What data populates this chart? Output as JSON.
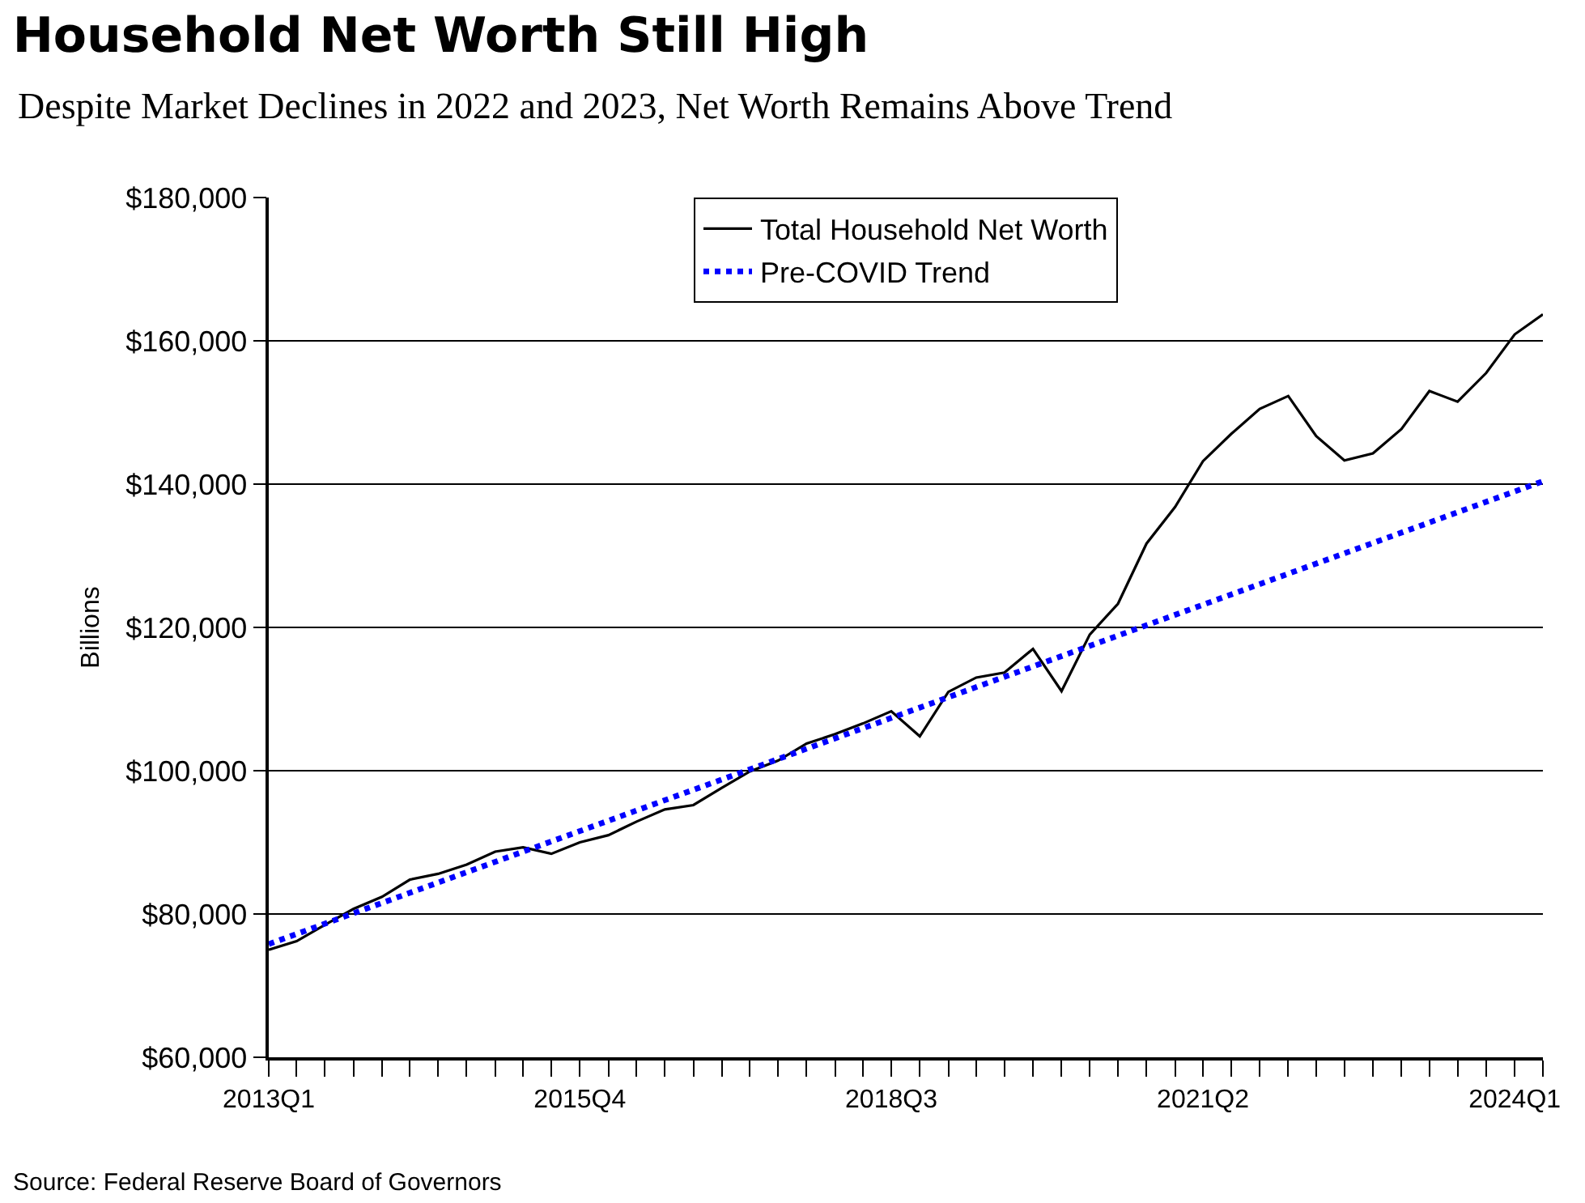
{
  "chart_data": {
    "type": "line",
    "title": "Household Net Worth Still High",
    "subtitle": "Despite Market Declines in 2022 and 2023, Net Worth Remains Above Trend",
    "ylabel": "Billions",
    "x": [
      "2013-01",
      "2013-04",
      "2013-07",
      "2013-10",
      "2014-01",
      "2014-04",
      "2014-07",
      "2014-10",
      "2015-01",
      "2015-04",
      "2015-07",
      "2015-10",
      "2016-01",
      "2016-04",
      "2016-07",
      "2016-10",
      "2017-01",
      "2017-04",
      "2017-07",
      "2017-10",
      "2018-01",
      "2018-04",
      "2018-07",
      "2018-10",
      "2019-01",
      "2019-04",
      "2019-07",
      "2019-10",
      "2020-01",
      "2020-04",
      "2020-07",
      "2020-10",
      "2021-01",
      "2021-04",
      "2021-07",
      "2021-10",
      "2022-01",
      "2022-04",
      "2022-07",
      "2022-10",
      "2023-01",
      "2023-04",
      "2023-07",
      "2023-10",
      "2024-01",
      "2024-04"
    ],
    "series": [
      {
        "name": "Total Household Net Worth",
        "color": "#000000",
        "line_style": "solid",
        "values": [
          75000,
          76200,
          78500,
          80700,
          82400,
          84800,
          85600,
          86900,
          88700,
          89300,
          88400,
          90000,
          91000,
          92900,
          94600,
          95200,
          97600,
          99900,
          101400,
          103800,
          105100,
          106600,
          108300,
          104800,
          111000,
          113000,
          113700,
          117000,
          111100,
          119000,
          123300,
          131700,
          136800,
          143200,
          147000,
          150500,
          152300,
          146700,
          143300,
          144300,
          147700,
          153000,
          151500,
          155500,
          160900,
          163700
        ]
      },
      {
        "name": "Pre-COVID Trend",
        "color": "#0000ff",
        "line_style": "dotted",
        "x": [
          "2013-01",
          "2024-04"
        ],
        "values": [
          75800,
          140400
        ]
      }
    ],
    "xlim": [
      "2013-01",
      "2024-04"
    ],
    "xticks": [
      {
        "value": "2013-01",
        "label": "2013Q1"
      },
      {
        "value": "2013-04",
        "label": null
      },
      {
        "value": "2013-07",
        "label": null
      },
      {
        "value": "2013-10",
        "label": null
      },
      {
        "value": "2014-01",
        "label": null
      },
      {
        "value": "2014-04",
        "label": null
      },
      {
        "value": "2014-07",
        "label": null
      },
      {
        "value": "2014-10",
        "label": null
      },
      {
        "value": "2015-01",
        "label": null
      },
      {
        "value": "2015-04",
        "label": null
      },
      {
        "value": "2015-07",
        "label": null
      },
      {
        "value": "2015-10",
        "label": "2015Q4"
      },
      {
        "value": "2016-01",
        "label": null
      },
      {
        "value": "2016-04",
        "label": null
      },
      {
        "value": "2016-07",
        "label": null
      },
      {
        "value": "2016-10",
        "label": null
      },
      {
        "value": "2017-01",
        "label": null
      },
      {
        "value": "2017-04",
        "label": null
      },
      {
        "value": "2017-07",
        "label": null
      },
      {
        "value": "2017-10",
        "label": null
      },
      {
        "value": "2018-01",
        "label": null
      },
      {
        "value": "2018-04",
        "label": null
      },
      {
        "value": "2018-07",
        "label": "2018Q3"
      },
      {
        "value": "2018-10",
        "label": null
      },
      {
        "value": "2019-01",
        "label": null
      },
      {
        "value": "2019-04",
        "label": null
      },
      {
        "value": "2019-07",
        "label": null
      },
      {
        "value": "2019-10",
        "label": null
      },
      {
        "value": "2020-01",
        "label": null
      },
      {
        "value": "2020-04",
        "label": null
      },
      {
        "value": "2020-07",
        "label": null
      },
      {
        "value": "2020-10",
        "label": null
      },
      {
        "value": "2021-01",
        "label": null
      },
      {
        "value": "2021-04",
        "label": "2021Q2"
      },
      {
        "value": "2021-07",
        "label": null
      },
      {
        "value": "2021-10",
        "label": null
      },
      {
        "value": "2022-01",
        "label": null
      },
      {
        "value": "2022-04",
        "label": null
      },
      {
        "value": "2022-07",
        "label": null
      },
      {
        "value": "2022-10",
        "label": null
      },
      {
        "value": "2023-01",
        "label": null
      },
      {
        "value": "2023-04",
        "label": null
      },
      {
        "value": "2023-07",
        "label": null
      },
      {
        "value": "2023-10",
        "label": null
      },
      {
        "value": "2024-01",
        "label": "2024Q1"
      },
      {
        "value": "2024-04",
        "label": null
      }
    ],
    "ylim": [
      60000,
      180000
    ],
    "yticks": [
      {
        "value": 60000,
        "label": "$60,000"
      },
      {
        "value": 80000,
        "label": "$80,000"
      },
      {
        "value": 100000,
        "label": "$100,000"
      },
      {
        "value": 120000,
        "label": "$120,000"
      },
      {
        "value": 140000,
        "label": "$140,000"
      },
      {
        "value": 160000,
        "label": "$160,000"
      },
      {
        "value": 180000,
        "label": "$180,000"
      }
    ],
    "grid": "y",
    "legend": "top",
    "marker": "none",
    "annotations": [
      "Source: Federal Reserve Board of Governors"
    ]
  }
}
